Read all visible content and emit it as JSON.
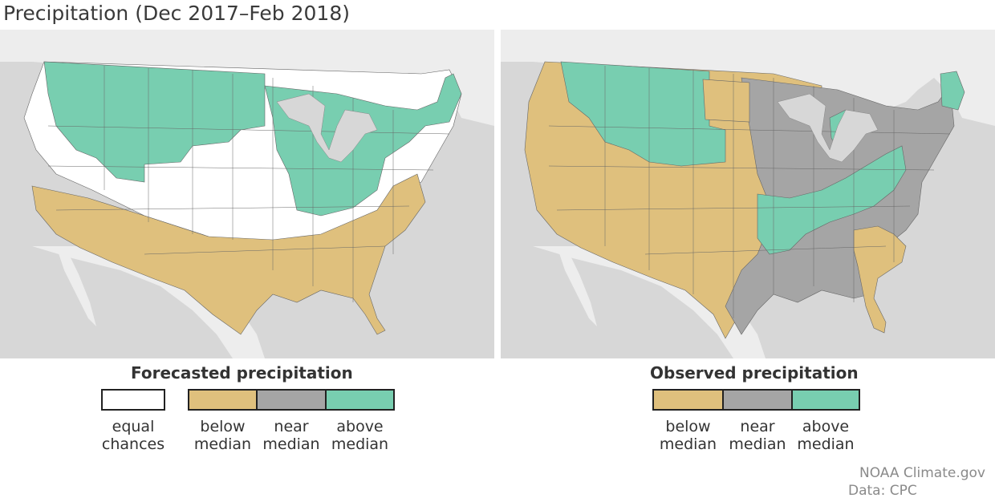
{
  "title": "Precipitation (Dec 2017–Feb 2018)",
  "colors": {
    "below": "#dfc07d",
    "near": "#a5a5a5",
    "above": "#78ceb0",
    "equal": "#ffffff",
    "land": "#ededed",
    "water": "#d7d7d7"
  },
  "forecast": {
    "legend_title": "Forecasted precipitation",
    "items": [
      {
        "key": "equal",
        "line1": "equal",
        "line2": "chances"
      },
      {
        "key": "below",
        "line1": "below",
        "line2": "median"
      },
      {
        "key": "near",
        "line1": "near",
        "line2": "median"
      },
      {
        "key": "above",
        "line1": "above",
        "line2": "median"
      }
    ]
  },
  "observed": {
    "legend_title": "Observed precipitation",
    "items": [
      {
        "key": "below",
        "line1": "below",
        "line2": "median"
      },
      {
        "key": "near",
        "line1": "near",
        "line2": "median"
      },
      {
        "key": "above",
        "line1": "above",
        "line2": "median"
      }
    ]
  },
  "credit": {
    "line1": "NOAA Climate.gov",
    "line2": "Data: CPC"
  }
}
